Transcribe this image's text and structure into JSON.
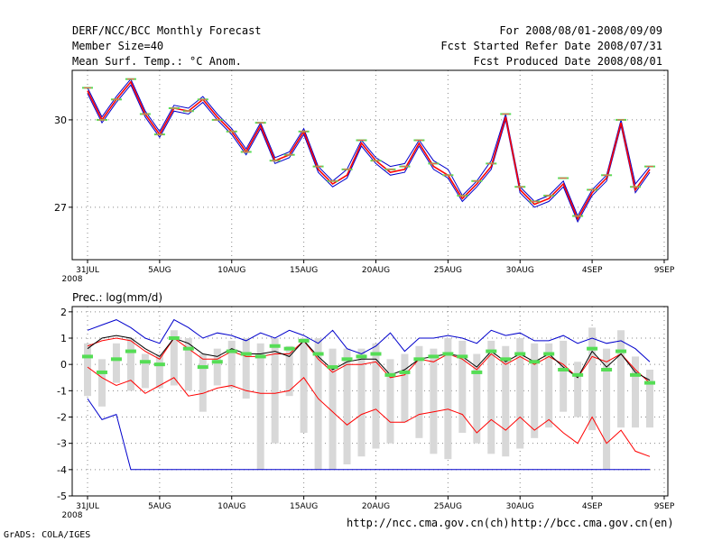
{
  "header": {
    "title": "DERF/NCC/BCC Monthly Forecast",
    "member_size": "Member Size=40",
    "variable": "Mean Surf. Temp.: °C Anom.",
    "period": "For 2008/08/01-2008/09/09",
    "started": "Fcst Started Refer Date 2008/07/31",
    "produced": "Fcst Produced Date 2008/08/01"
  },
  "footer": {
    "url_ch": "http://ncc.cma.gov.cn(ch)",
    "url_en": "http://bcc.cma.gov.cn(en)",
    "credit": "GrADS: COLA/IGES"
  },
  "colors": {
    "frame": "#000000",
    "grid": "#888888",
    "mean": "#ff0000",
    "center": "#000000",
    "envelope_temp": "#0000cc",
    "spread": "#d8d8d8",
    "marker": "#55dd55",
    "envelope_prec": "#0000cc"
  },
  "chart_data": [
    {
      "type": "line",
      "title": "Mean Surf. Temp.: °C Anom.",
      "x_tick_labels": [
        "31JUL",
        "5AUG",
        "10AUG",
        "15AUG",
        "20AUG",
        "25AUG",
        "30AUG",
        "4SEP",
        "9SEP"
      ],
      "x_year_label": "2008",
      "ylim": [
        25.2,
        31.7
      ],
      "y_ticks": [
        27,
        30
      ],
      "series": [
        {
          "name": "mean",
          "values": [
            31.0,
            30.0,
            30.7,
            31.3,
            30.2,
            29.5,
            30.4,
            30.3,
            30.7,
            30.1,
            29.6,
            28.9,
            29.8,
            28.6,
            28.8,
            29.6,
            28.3,
            27.8,
            28.1,
            29.2,
            28.6,
            28.2,
            28.3,
            29.2,
            28.4,
            28.1,
            27.3,
            27.8,
            28.4,
            30.1,
            27.6,
            27.1,
            27.3,
            27.8,
            26.6,
            27.5,
            28.0,
            29.9,
            27.6,
            28.3
          ]
        },
        {
          "name": "upper",
          "values": [
            31.1,
            30.1,
            30.8,
            31.4,
            30.3,
            29.6,
            30.5,
            30.4,
            30.8,
            30.2,
            29.7,
            29.0,
            29.9,
            28.7,
            28.9,
            29.7,
            28.4,
            27.9,
            28.3,
            29.3,
            28.7,
            28.4,
            28.5,
            29.3,
            28.6,
            28.3,
            27.4,
            27.9,
            28.6,
            30.2,
            27.7,
            27.2,
            27.4,
            27.9,
            26.7,
            27.6,
            28.1,
            30.0,
            27.8,
            28.4
          ]
        },
        {
          "name": "lower",
          "values": [
            30.9,
            29.9,
            30.6,
            31.2,
            30.1,
            29.4,
            30.3,
            30.2,
            30.6,
            30.0,
            29.5,
            28.8,
            29.7,
            28.5,
            28.7,
            29.5,
            28.2,
            27.7,
            28.0,
            29.1,
            28.5,
            28.1,
            28.2,
            29.1,
            28.3,
            28.0,
            27.2,
            27.7,
            28.3,
            30.0,
            27.5,
            27.0,
            27.2,
            27.7,
            26.5,
            27.4,
            27.9,
            29.8,
            27.5,
            28.2
          ]
        },
        {
          "name": "markers",
          "values": [
            31.1,
            30.0,
            30.7,
            31.4,
            30.2,
            29.5,
            30.4,
            30.3,
            30.7,
            30.0,
            29.6,
            28.9,
            29.9,
            28.6,
            28.8,
            29.6,
            28.4,
            27.9,
            28.3,
            29.3,
            28.6,
            28.3,
            28.4,
            29.3,
            28.5,
            28.1,
            27.4,
            27.9,
            28.5,
            30.2,
            27.7,
            27.2,
            27.4,
            28.0,
            26.7,
            27.6,
            28.1,
            30.0,
            27.7,
            28.4
          ]
        }
      ]
    },
    {
      "type": "line",
      "title": "Prec.: log(mm/d)",
      "x_tick_labels": [
        "31JUL",
        "5AUG",
        "10AUG",
        "15AUG",
        "20AUG",
        "25AUG",
        "30AUG",
        "4SEP",
        "9SEP"
      ],
      "x_year_label": "2008",
      "ylim": [
        -5,
        2.2
      ],
      "y_ticks": [
        -5,
        -4,
        -3,
        -2,
        -1,
        0,
        1,
        2
      ],
      "series": [
        {
          "name": "max",
          "values": [
            1.3,
            1.5,
            1.7,
            1.4,
            1.0,
            0.8,
            1.7,
            1.4,
            1.0,
            1.2,
            1.1,
            0.9,
            1.2,
            1.0,
            1.3,
            1.1,
            0.8,
            1.3,
            0.6,
            0.4,
            0.7,
            1.2,
            0.5,
            1.0,
            1.0,
            1.1,
            1.0,
            0.8,
            1.3,
            1.1,
            1.2,
            0.9,
            0.9,
            1.1,
            0.8,
            1.0,
            0.8,
            0.9,
            0.6,
            0.1
          ]
        },
        {
          "name": "min",
          "values": [
            -1.3,
            -2.1,
            -1.9,
            -4.0,
            -4.0,
            -4.0,
            -4.0,
            -4.0,
            -4.0,
            -4.0,
            -4.0,
            -4.0,
            -4.0,
            -4.0,
            -4.0,
            -4.0,
            -4.0,
            -4.0,
            -4.0,
            -4.0,
            -4.0,
            -4.0,
            -4.0,
            -4.0,
            -4.0,
            -4.0,
            -4.0,
            -4.0,
            -4.0,
            -4.0,
            -4.0,
            -4.0,
            -4.0,
            -4.0,
            -4.0,
            -4.0,
            -4.0,
            -4.0,
            -4.0,
            -4.0
          ]
        },
        {
          "name": "upper",
          "values": [
            0.7,
            0.9,
            1.0,
            0.9,
            0.5,
            0.2,
            1.0,
            0.6,
            0.2,
            0.2,
            0.5,
            0.3,
            0.3,
            0.4,
            0.4,
            0.9,
            0.2,
            -0.3,
            0.0,
            0.0,
            0.1,
            -0.5,
            -0.4,
            0.2,
            0.1,
            0.4,
            0.2,
            -0.2,
            0.4,
            0.0,
            0.3,
            0.0,
            0.3,
            0.0,
            -0.5,
            0.3,
            0.1,
            0.4,
            -0.2,
            -0.7
          ]
        },
        {
          "name": "center",
          "values": [
            0.6,
            1.0,
            1.1,
            1.0,
            0.6,
            0.3,
            1.0,
            0.8,
            0.4,
            0.3,
            0.6,
            0.4,
            0.4,
            0.5,
            0.3,
            0.9,
            0.3,
            -0.2,
            0.1,
            0.2,
            0.2,
            -0.4,
            -0.2,
            0.2,
            0.3,
            0.4,
            0.3,
            -0.1,
            0.5,
            0.1,
            0.4,
            0.1,
            0.4,
            -0.1,
            -0.5,
            0.5,
            -0.1,
            0.4,
            -0.3,
            -0.6
          ]
        },
        {
          "name": "lower",
          "values": [
            -0.1,
            -0.5,
            -0.8,
            -0.6,
            -1.1,
            -0.8,
            -0.5,
            -1.2,
            -1.1,
            -0.9,
            -0.8,
            -1.0,
            -1.1,
            -1.1,
            -1.0,
            -0.5,
            -1.3,
            -1.8,
            -2.3,
            -1.9,
            -1.7,
            -2.2,
            -2.2,
            -1.9,
            -1.8,
            -1.7,
            -1.9,
            -2.6,
            -2.1,
            -2.5,
            -2.0,
            -2.5,
            -2.1,
            -2.6,
            -3.0,
            -2.0,
            -3.0,
            -2.5,
            -3.3,
            -3.5
          ]
        },
        {
          "name": "markers",
          "values": [
            0.3,
            -0.3,
            0.2,
            0.5,
            0.1,
            0.0,
            1.0,
            0.6,
            -0.1,
            0.1,
            0.5,
            0.4,
            0.3,
            0.7,
            0.6,
            0.9,
            0.4,
            -0.1,
            0.2,
            0.3,
            0.4,
            -0.4,
            -0.3,
            0.2,
            0.3,
            0.4,
            0.3,
            -0.3,
            0.5,
            0.2,
            0.4,
            0.1,
            0.4,
            -0.2,
            -0.4,
            0.6,
            -0.2,
            0.5,
            -0.4,
            -0.7
          ]
        },
        {
          "name": "spread_top",
          "values": [
            0.8,
            0.2,
            0.8,
            1.0,
            0.4,
            0.4,
            1.3,
            1.0,
            0.4,
            0.6,
            0.9,
            1.0,
            0.8,
            1.0,
            0.7,
            1.0,
            1.0,
            0.6,
            0.6,
            0.6,
            0.8,
            0.2,
            0.4,
            0.7,
            0.6,
            1.0,
            0.9,
            0.4,
            0.9,
            0.7,
            1.0,
            0.8,
            0.8,
            0.9,
            0.1,
            1.4,
            0.6,
            1.3,
            0.3,
            -0.2
          ]
        },
        {
          "name": "spread_bottom",
          "values": [
            -1.2,
            -1.6,
            -0.7,
            -1.0,
            -0.9,
            -0.9,
            -0.8,
            -1.0,
            -1.8,
            -0.8,
            -0.9,
            -1.3,
            -4.0,
            -3.0,
            -1.2,
            -2.6,
            -4.0,
            -4.0,
            -3.8,
            -3.5,
            -3.2,
            -3.0,
            -2.2,
            -2.8,
            -3.4,
            -3.6,
            -2.6,
            -3.0,
            -3.4,
            -3.5,
            -3.2,
            -2.8,
            -2.4,
            -1.8,
            -2.0,
            -2.5,
            -4.0,
            -2.4,
            -2.4,
            -2.4
          ]
        }
      ]
    }
  ]
}
